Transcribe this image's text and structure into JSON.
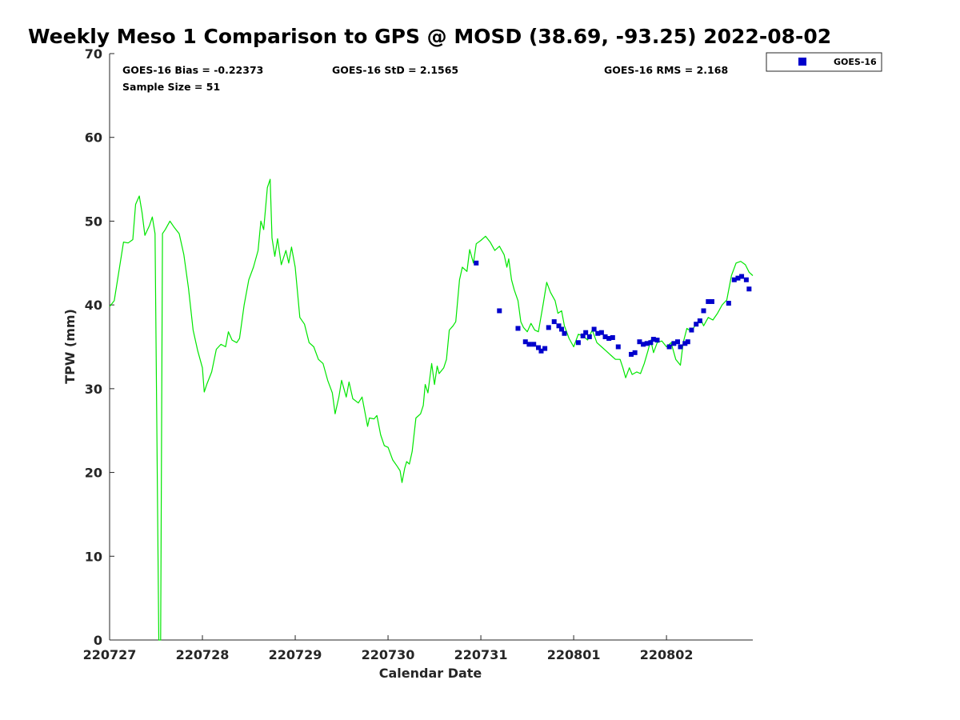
{
  "chart_data": {
    "type": "line",
    "title": "Weekly Meso 1 Comparison to GPS @ MOSD (38.69, -93.25) 2022-08-02",
    "xlabel": "Calendar Date",
    "ylabel": "TPW (mm)",
    "xlim": [
      0,
      6.93
    ],
    "ylim": [
      0,
      70
    ],
    "x_unit": "days since 220727",
    "categories": [
      "220727",
      "220728",
      "220729",
      "220730",
      "220731",
      "220801",
      "220802"
    ],
    "y_ticks": [
      "0",
      "10",
      "20",
      "30",
      "40",
      "50",
      "60",
      "70"
    ],
    "grid": false,
    "legend_position": "top-right-outside",
    "stats": {
      "bias": "GOES-16 Bias = -0.22373",
      "std": "GOES-16 StD = 2.1565",
      "rms": "GOES-16 RMS = 2.168",
      "sample": "Sample Size = 51"
    },
    "colors": {
      "gps": "#00e600",
      "goes": "#0000cc"
    },
    "series": [
      {
        "key": "gps",
        "type": "line",
        "points": [
          [
            0.0,
            39.8
          ],
          [
            0.05,
            40.5
          ],
          [
            0.1,
            44.0
          ],
          [
            0.15,
            47.5
          ],
          [
            0.2,
            47.4
          ],
          [
            0.25,
            47.8
          ],
          [
            0.28,
            52.0
          ],
          [
            0.32,
            53.0
          ],
          [
            0.35,
            51.0
          ],
          [
            0.38,
            48.3
          ],
          [
            0.43,
            49.5
          ],
          [
            0.46,
            50.5
          ],
          [
            0.49,
            48.5
          ],
          [
            0.53,
            0.0
          ],
          [
            0.55,
            0.0
          ],
          [
            0.57,
            48.5
          ],
          [
            0.6,
            49.0
          ],
          [
            0.65,
            50.0
          ],
          [
            0.7,
            49.2
          ],
          [
            0.75,
            48.5
          ],
          [
            0.8,
            46.0
          ],
          [
            0.85,
            42.0
          ],
          [
            0.9,
            37.0
          ],
          [
            0.95,
            34.5
          ],
          [
            1.0,
            32.5
          ],
          [
            1.02,
            29.6
          ],
          [
            1.05,
            30.6
          ],
          [
            1.1,
            32.0
          ],
          [
            1.15,
            34.7
          ],
          [
            1.2,
            35.3
          ],
          [
            1.25,
            35.0
          ],
          [
            1.28,
            36.8
          ],
          [
            1.32,
            35.8
          ],
          [
            1.37,
            35.5
          ],
          [
            1.4,
            36.0
          ],
          [
            1.45,
            40.0
          ],
          [
            1.5,
            43.0
          ],
          [
            1.55,
            44.5
          ],
          [
            1.6,
            46.5
          ],
          [
            1.63,
            50.0
          ],
          [
            1.66,
            49.0
          ],
          [
            1.7,
            54.0
          ],
          [
            1.73,
            55.0
          ],
          [
            1.75,
            48.0
          ],
          [
            1.78,
            45.8
          ],
          [
            1.81,
            47.9
          ],
          [
            1.85,
            44.8
          ],
          [
            1.9,
            46.5
          ],
          [
            1.93,
            45.0
          ],
          [
            1.96,
            46.9
          ],
          [
            2.0,
            44.5
          ],
          [
            2.05,
            38.5
          ],
          [
            2.1,
            37.7
          ],
          [
            2.15,
            35.5
          ],
          [
            2.2,
            35.0
          ],
          [
            2.25,
            33.5
          ],
          [
            2.3,
            33.0
          ],
          [
            2.35,
            31.0
          ],
          [
            2.4,
            29.5
          ],
          [
            2.43,
            27.0
          ],
          [
            2.47,
            29.0
          ],
          [
            2.5,
            31.0
          ],
          [
            2.55,
            29.0
          ],
          [
            2.58,
            30.8
          ],
          [
            2.62,
            28.8
          ],
          [
            2.68,
            28.3
          ],
          [
            2.72,
            29.0
          ],
          [
            2.78,
            25.5
          ],
          [
            2.8,
            26.5
          ],
          [
            2.85,
            26.4
          ],
          [
            2.88,
            26.8
          ],
          [
            2.92,
            24.5
          ],
          [
            2.96,
            23.2
          ],
          [
            3.0,
            23.0
          ],
          [
            3.05,
            21.5
          ],
          [
            3.1,
            20.7
          ],
          [
            3.13,
            20.2
          ],
          [
            3.15,
            18.8
          ],
          [
            3.18,
            20.5
          ],
          [
            3.2,
            21.3
          ],
          [
            3.23,
            21.0
          ],
          [
            3.26,
            22.5
          ],
          [
            3.3,
            26.5
          ],
          [
            3.35,
            27.0
          ],
          [
            3.38,
            28.0
          ],
          [
            3.4,
            30.5
          ],
          [
            3.43,
            29.5
          ],
          [
            3.47,
            33.0
          ],
          [
            3.5,
            30.5
          ],
          [
            3.53,
            32.7
          ],
          [
            3.55,
            31.8
          ],
          [
            3.6,
            32.5
          ],
          [
            3.63,
            33.5
          ],
          [
            3.66,
            37.0
          ],
          [
            3.7,
            37.5
          ],
          [
            3.73,
            38.0
          ],
          [
            3.77,
            43.0
          ],
          [
            3.8,
            44.5
          ],
          [
            3.85,
            44.0
          ],
          [
            3.88,
            46.6
          ],
          [
            3.92,
            45.0
          ],
          [
            3.95,
            47.3
          ],
          [
            4.0,
            47.7
          ],
          [
            4.05,
            48.2
          ],
          [
            4.1,
            47.5
          ],
          [
            4.15,
            46.5
          ],
          [
            4.2,
            47.0
          ],
          [
            4.25,
            46.0
          ],
          [
            4.28,
            44.5
          ],
          [
            4.3,
            45.5
          ],
          [
            4.33,
            43.0
          ],
          [
            4.36,
            41.8
          ],
          [
            4.4,
            40.5
          ],
          [
            4.43,
            38.0
          ],
          [
            4.46,
            37.3
          ],
          [
            4.5,
            36.8
          ],
          [
            4.54,
            37.8
          ],
          [
            4.58,
            37.0
          ],
          [
            4.62,
            36.8
          ],
          [
            4.67,
            40.0
          ],
          [
            4.71,
            42.7
          ],
          [
            4.75,
            41.5
          ],
          [
            4.8,
            40.5
          ],
          [
            4.83,
            39.0
          ],
          [
            4.87,
            39.3
          ],
          [
            4.9,
            37.5
          ],
          [
            4.95,
            36.0
          ],
          [
            5.0,
            35.0
          ],
          [
            5.05,
            36.5
          ],
          [
            5.1,
            36.3
          ],
          [
            5.15,
            35.8
          ],
          [
            5.2,
            37.0
          ],
          [
            5.25,
            35.5
          ],
          [
            5.3,
            35.0
          ],
          [
            5.35,
            34.5
          ],
          [
            5.4,
            34.0
          ],
          [
            5.45,
            33.5
          ],
          [
            5.5,
            33.5
          ],
          [
            5.53,
            32.5
          ],
          [
            5.56,
            31.3
          ],
          [
            5.6,
            32.5
          ],
          [
            5.63,
            31.7
          ],
          [
            5.68,
            32.0
          ],
          [
            5.72,
            31.8
          ],
          [
            5.76,
            33.0
          ],
          [
            5.8,
            34.5
          ],
          [
            5.83,
            35.8
          ],
          [
            5.86,
            34.3
          ],
          [
            5.9,
            35.5
          ],
          [
            5.95,
            35.7
          ],
          [
            6.0,
            35.0
          ],
          [
            6.05,
            35.5
          ],
          [
            6.1,
            33.5
          ],
          [
            6.15,
            32.8
          ],
          [
            6.18,
            35.5
          ],
          [
            6.22,
            37.2
          ],
          [
            6.27,
            36.8
          ],
          [
            6.32,
            37.8
          ],
          [
            6.37,
            38.3
          ],
          [
            6.4,
            37.5
          ],
          [
            6.45,
            38.5
          ],
          [
            6.5,
            38.2
          ],
          [
            6.55,
            39.0
          ],
          [
            6.6,
            40.0
          ],
          [
            6.65,
            40.6
          ],
          [
            6.7,
            43.5
          ],
          [
            6.75,
            45.0
          ],
          [
            6.8,
            45.2
          ],
          [
            6.85,
            44.8
          ],
          [
            6.89,
            43.9
          ],
          [
            6.93,
            43.5
          ]
        ]
      },
      {
        "key": "goes",
        "name": "GOES-16",
        "type": "scatter",
        "points": [
          [
            3.95,
            45.0
          ],
          [
            4.2,
            39.3
          ],
          [
            4.4,
            37.2
          ],
          [
            4.48,
            35.6
          ],
          [
            4.52,
            35.3
          ],
          [
            4.57,
            35.3
          ],
          [
            4.62,
            34.9
          ],
          [
            4.65,
            34.5
          ],
          [
            4.69,
            34.8
          ],
          [
            4.73,
            37.3
          ],
          [
            4.79,
            38.0
          ],
          [
            4.84,
            37.5
          ],
          [
            4.87,
            37.1
          ],
          [
            4.9,
            36.6
          ],
          [
            5.05,
            35.5
          ],
          [
            5.1,
            36.3
          ],
          [
            5.13,
            36.7
          ],
          [
            5.17,
            36.2
          ],
          [
            5.22,
            37.1
          ],
          [
            5.26,
            36.6
          ],
          [
            5.3,
            36.7
          ],
          [
            5.34,
            36.2
          ],
          [
            5.38,
            36.0
          ],
          [
            5.42,
            36.1
          ],
          [
            5.48,
            35.0
          ],
          [
            5.62,
            34.1
          ],
          [
            5.66,
            34.3
          ],
          [
            5.71,
            35.6
          ],
          [
            5.75,
            35.3
          ],
          [
            5.79,
            35.4
          ],
          [
            5.83,
            35.5
          ],
          [
            5.86,
            35.9
          ],
          [
            5.9,
            35.8
          ],
          [
            6.03,
            35.0
          ],
          [
            6.08,
            35.4
          ],
          [
            6.12,
            35.6
          ],
          [
            6.15,
            35.0
          ],
          [
            6.2,
            35.4
          ],
          [
            6.23,
            35.6
          ],
          [
            6.27,
            37.0
          ],
          [
            6.32,
            37.7
          ],
          [
            6.36,
            38.1
          ],
          [
            6.4,
            39.3
          ],
          [
            6.45,
            40.4
          ],
          [
            6.49,
            40.4
          ],
          [
            6.67,
            40.2
          ],
          [
            6.73,
            43.0
          ],
          [
            6.77,
            43.2
          ],
          [
            6.81,
            43.4
          ],
          [
            6.86,
            43.0
          ],
          [
            6.89,
            41.9
          ]
        ]
      }
    ]
  }
}
